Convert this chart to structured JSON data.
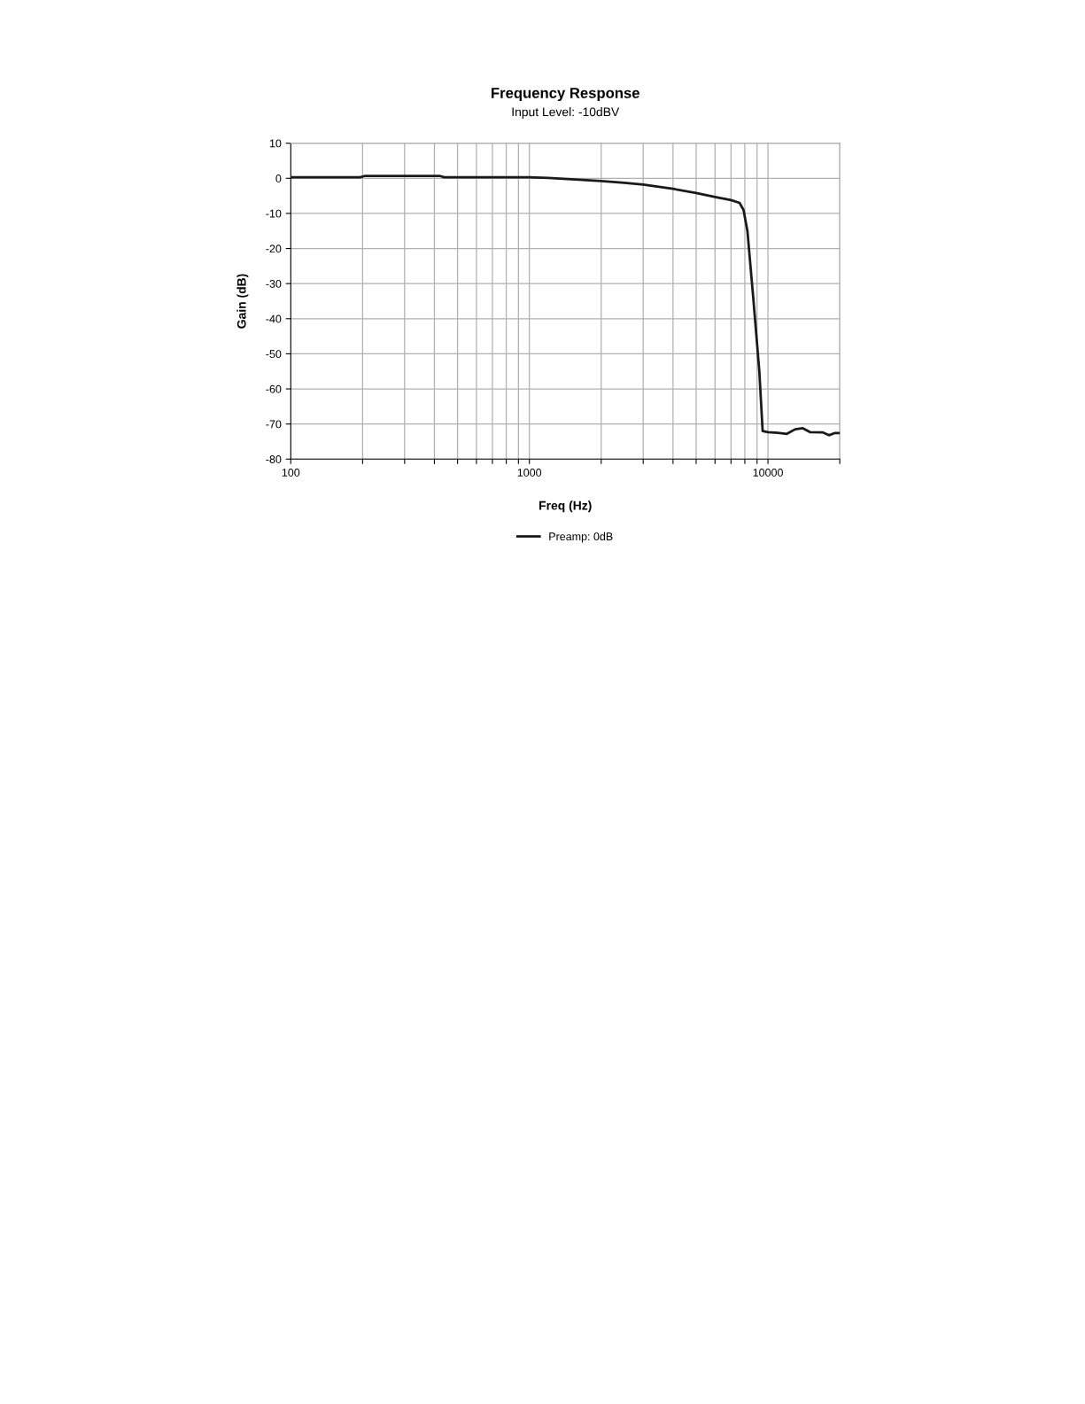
{
  "chart_data": {
    "type": "line",
    "title": "Frequency Response",
    "subtitle": "Input Level: -10dBV",
    "xlabel": "Freq (Hz)",
    "ylabel": "Gain (dB)",
    "log": "x",
    "xlim": [
      100,
      20000
    ],
    "xticks": [
      100,
      {
        "value": 200,
        "label": null
      },
      {
        "value": 300,
        "label": null
      },
      {
        "value": 400,
        "label": null
      },
      {
        "value": 500,
        "label": null
      },
      {
        "value": 600,
        "label": null
      },
      {
        "value": 700,
        "label": null
      },
      {
        "value": 800,
        "label": null
      },
      {
        "value": 900,
        "label": null
      },
      1000,
      {
        "value": 2000,
        "label": null
      },
      {
        "value": 3000,
        "label": null
      },
      {
        "value": 4000,
        "label": null
      },
      {
        "value": 5000,
        "label": null
      },
      {
        "value": 6000,
        "label": null
      },
      {
        "value": 7000,
        "label": null
      },
      {
        "value": 8000,
        "label": null
      },
      {
        "value": 9000,
        "label": null
      },
      10000,
      {
        "value": 20000,
        "label": null
      }
    ],
    "ylim": [
      -80,
      10
    ],
    "yticks": [
      -80,
      -70,
      -60,
      -50,
      -40,
      -30,
      -20,
      -10,
      0,
      10
    ],
    "grid": true,
    "legend": "bottom",
    "marker": "none",
    "line_style": "solid",
    "series": [
      {
        "name": "Preamp: 0dB",
        "color": "#1a1a1a",
        "x": [
          100,
          195,
          205,
          420,
          440,
          1000,
          1200,
          1500,
          2000,
          2500,
          3000,
          4000,
          5000,
          6000,
          7000,
          7600,
          7900,
          8200,
          8700,
          9200,
          9500,
          10000,
          11000,
          12000,
          13000,
          14000,
          15000,
          17000,
          18000,
          19000,
          20000
        ],
        "values": [
          0.3,
          0.3,
          0.7,
          0.7,
          0.3,
          0.3,
          0.1,
          -0.3,
          -0.8,
          -1.3,
          -1.8,
          -3,
          -4.2,
          -5.3,
          -6.2,
          -7,
          -9,
          -15,
          -35,
          -55,
          -72,
          -72.3,
          -72.5,
          -72.8,
          -71.5,
          -71.2,
          -72.3,
          -72.4,
          -73.2,
          -72.6,
          -72.6
        ]
      }
    ]
  }
}
